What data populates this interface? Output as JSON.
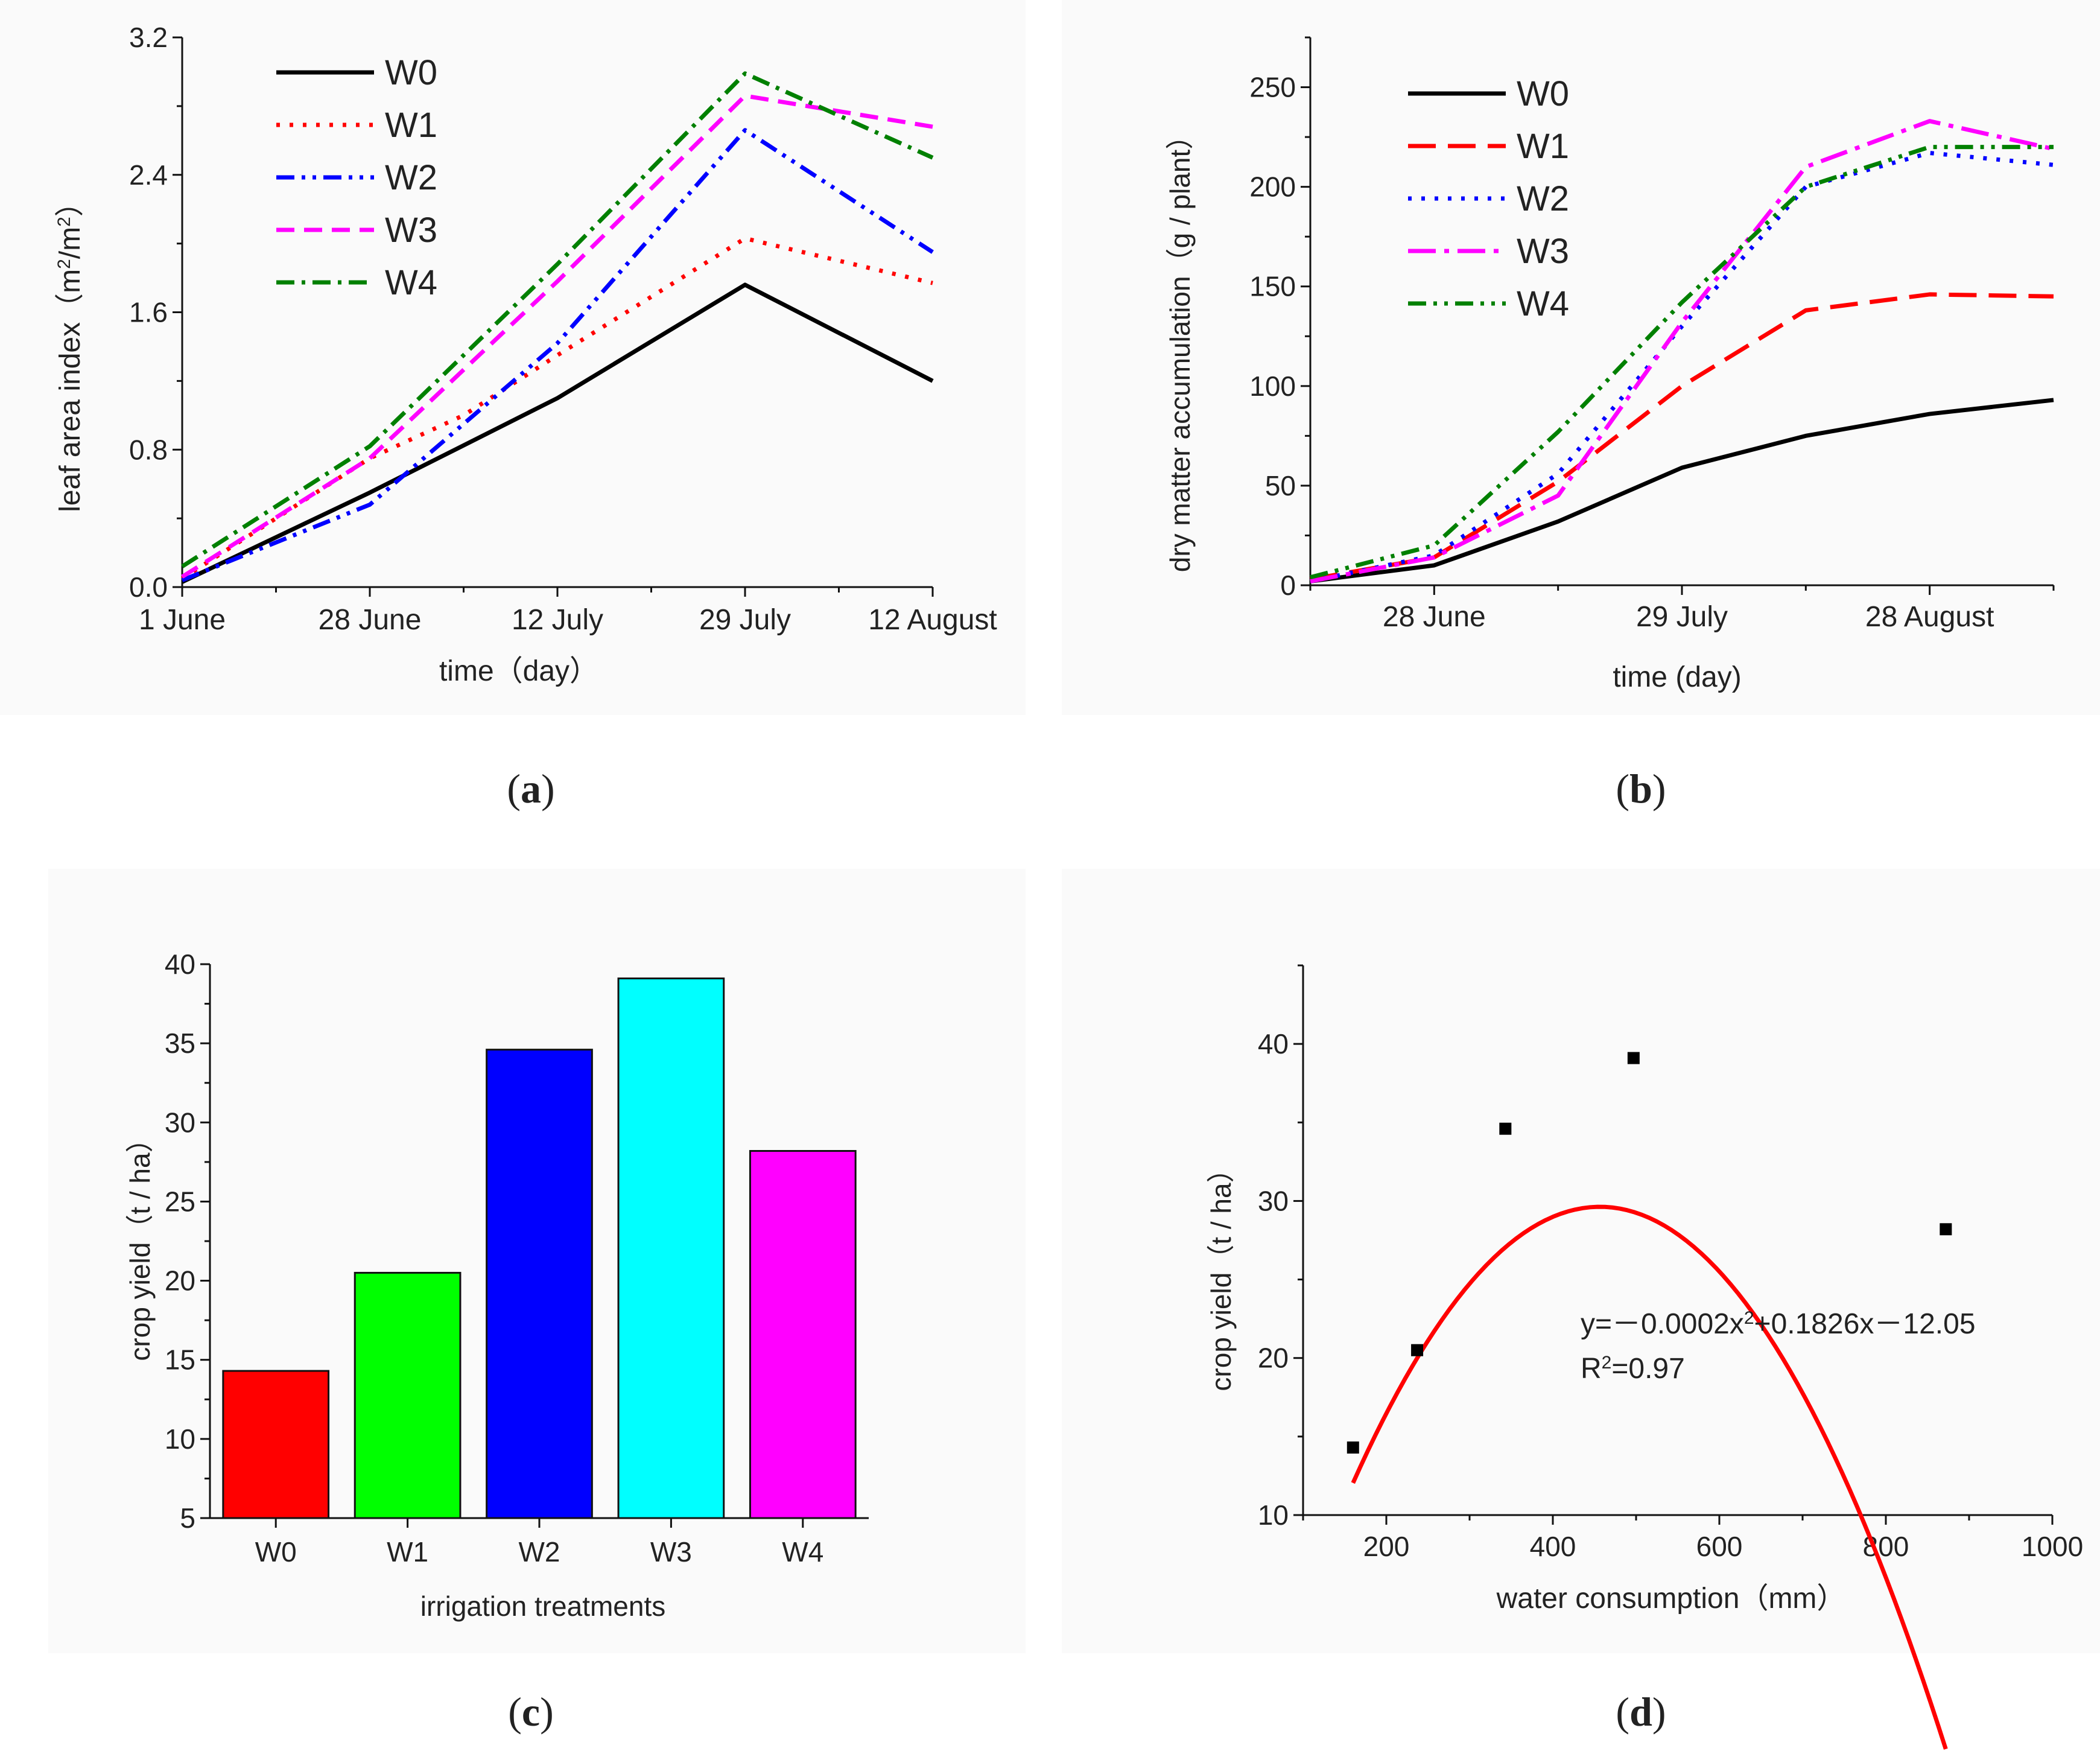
{
  "chart_data": [
    {
      "panel": "a",
      "type": "line",
      "label": "a",
      "xlabel": "time（day）",
      "ylabel": "leaf area index（m²/m²）",
      "ylabel_parts": [
        "leaf area index（m",
        "2",
        "/m",
        "2",
        "）"
      ],
      "categories": [
        "1 June",
        "28 June",
        "12 July",
        "29 July",
        "12 August"
      ],
      "x": [
        0,
        1,
        1.5,
        2,
        2.5,
        3,
        4
      ],
      "ylim": [
        0,
        3.2
      ],
      "yticks": [
        "0.0",
        "0.8",
        "1.6",
        "2.4",
        "3.2"
      ],
      "series": [
        {
          "name": "W0",
          "color": "#000000",
          "dash": "solid",
          "values": [
            0.03,
            0.55,
            null,
            1.1,
            null,
            1.76,
            1.2
          ]
        },
        {
          "name": "W1",
          "color": "#ff0000",
          "dash": "dot",
          "values": [
            0.05,
            0.75,
            1.0,
            1.35,
            null,
            2.03,
            1.77
          ]
        },
        {
          "name": "W2",
          "color": "#0000ff",
          "dash": "dashdotdot",
          "values": [
            0.04,
            0.48,
            null,
            1.42,
            null,
            2.66,
            1.95
          ]
        },
        {
          "name": "W3",
          "color": "#ff00ff",
          "dash": "dash",
          "values": [
            0.06,
            0.75,
            null,
            1.78,
            null,
            2.86,
            2.68
          ]
        },
        {
          "name": "W4",
          "color": "#008000",
          "dash": "dashdot",
          "values": [
            0.12,
            0.82,
            null,
            1.88,
            null,
            2.99,
            2.5
          ]
        }
      ]
    },
    {
      "panel": "b",
      "type": "line",
      "label": "b",
      "xlabel": "time (day)",
      "ylabel": "dry matter accumulation（g / plant）",
      "categories": [
        "28 June",
        "29 July",
        "28 August"
      ],
      "category_positions": [
        1,
        3,
        5
      ],
      "x": [
        0,
        1,
        2,
        3,
        4,
        5,
        6
      ],
      "ylim": [
        0,
        275
      ],
      "yticks": [
        "0",
        "50",
        "100",
        "150",
        "200",
        "250"
      ],
      "series": [
        {
          "name": "W0",
          "color": "#000000",
          "dash": "solid",
          "values": [
            2,
            10,
            32,
            59,
            75,
            86,
            93
          ]
        },
        {
          "name": "W1",
          "color": "#ff0000",
          "dash": "longdash",
          "values": [
            3,
            14,
            52,
            100,
            138,
            146,
            145
          ]
        },
        {
          "name": "W2",
          "color": "#0000ff",
          "dash": "dot",
          "values": [
            2,
            15,
            56,
            130,
            200,
            217,
            211
          ]
        },
        {
          "name": "W3",
          "color": "#ff00ff",
          "dash": "longdashdot",
          "values": [
            2,
            14,
            45,
            132,
            210,
            233,
            219
          ]
        },
        {
          "name": "W4",
          "color": "#008000",
          "dash": "dashdotdot",
          "values": [
            4,
            20,
            77,
            142,
            200,
            220,
            220
          ]
        }
      ]
    },
    {
      "panel": "c",
      "type": "bar",
      "label": "c",
      "xlabel": "irrigation treatments",
      "ylabel": "crop yield（t / ha）",
      "categories": [
        "W0",
        "W1",
        "W2",
        "W3",
        "W4"
      ],
      "values": [
        14.3,
        20.5,
        34.6,
        39.1,
        28.2
      ],
      "colors": [
        "#ff0000",
        "#00ff00",
        "#0000ff",
        "#00ffff",
        "#ff00ff"
      ],
      "ylim": [
        5,
        40
      ],
      "yticks": [
        "5",
        "10",
        "15",
        "20",
        "25",
        "30",
        "35",
        "40"
      ]
    },
    {
      "panel": "d",
      "type": "scatter",
      "label": "d",
      "xlabel": "water consumption（mm）",
      "ylabel": "crop yield（t / ha）",
      "xlim": [
        100,
        1000
      ],
      "ylim": [
        10,
        45
      ],
      "xticks": [
        "200",
        "400",
        "600",
        "800",
        "1000"
      ],
      "yticks": [
        "10",
        "20",
        "30",
        "40"
      ],
      "points": {
        "x": [
          160,
          237,
          343,
          497,
          872
        ],
        "y": [
          14.3,
          20.5,
          34.6,
          39.1,
          28.2
        ]
      },
      "fit": {
        "a": -0.0002,
        "b": 0.1826,
        "c": -12.05,
        "x_range": [
          160,
          872
        ],
        "color": "#ff0000"
      },
      "equation_parts": [
        "y=－0.0002x",
        "2",
        "+0.1826x－12.05"
      ],
      "r2_parts": [
        "R",
        "2",
        "=0.97"
      ]
    }
  ]
}
